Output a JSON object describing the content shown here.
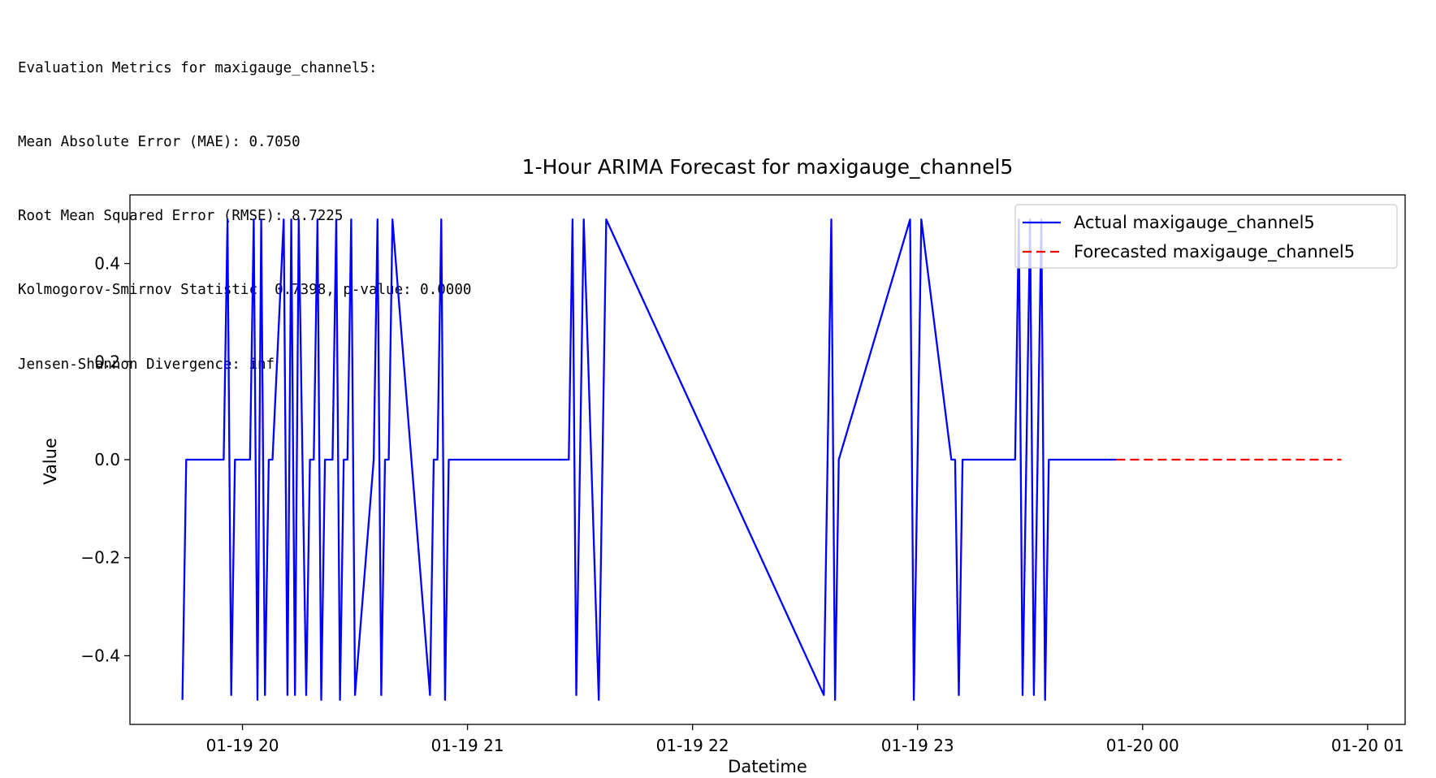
{
  "metrics": {
    "heading": "Evaluation Metrics for maxigauge_channel5:",
    "mae": "Mean Absolute Error (MAE): 0.7050",
    "rmse": "Root Mean Squared Error (RMSE): 8.7225",
    "ks": "Kolmogorov-Smirnov Statistic: 0.7398, p-value: 0.0000",
    "js": "Jensen-Shannon Divergence: inf"
  },
  "chart_data": {
    "type": "line",
    "title": "1-Hour ARIMA Forecast for maxigauge_channel5",
    "xlabel": "Datetime",
    "ylabel": "Value",
    "xlim": [
      "01-19 19:30",
      "01-20 01:10"
    ],
    "ylim": [
      -0.54,
      0.54
    ],
    "xticks": [
      {
        "label": "01-19 20",
        "time": "01-19 20:00"
      },
      {
        "label": "01-19 21",
        "time": "01-19 21:00"
      },
      {
        "label": "01-19 22",
        "time": "01-19 22:00"
      },
      {
        "label": "01-19 23",
        "time": "01-19 23:00"
      },
      {
        "label": "01-20 00",
        "time": "01-20 00:00"
      },
      {
        "label": "01-20 01",
        "time": "01-20 01:00"
      }
    ],
    "yticks": [
      {
        "label": "0.4",
        "value": 0.4
      },
      {
        "label": "0.2",
        "value": 0.2
      },
      {
        "label": "0.0",
        "value": 0.0
      },
      {
        "label": "−0.2",
        "value": -0.2
      },
      {
        "label": "−0.4",
        "value": -0.4
      }
    ],
    "legend_position": "top-right",
    "grid": false,
    "series": [
      {
        "name": "Actual maxigauge_channel5",
        "color": "#0000ff",
        "style": "solid",
        "x": [
          "01-19 19:44",
          "01-19 19:45",
          "01-19 19:55",
          "01-19 19:56",
          "01-19 19:57",
          "01-19 19:58",
          "01-19 20:02",
          "01-19 20:03",
          "01-19 20:04",
          "01-19 20:05",
          "01-19 20:06",
          "01-19 20:07",
          "01-19 20:08",
          "01-19 20:11",
          "01-19 20:12",
          "01-19 20:13",
          "01-19 20:14",
          "01-19 20:15",
          "01-19 20:16",
          "01-19 20:17",
          "01-19 20:18",
          "01-19 20:19",
          "01-19 20:20",
          "01-19 20:21",
          "01-19 20:22",
          "01-19 20:23",
          "01-19 20:24",
          "01-19 20:25",
          "01-19 20:26",
          "01-19 20:27",
          "01-19 20:28",
          "01-19 20:29",
          "01-19 20:30",
          "01-19 20:35",
          "01-19 20:36",
          "01-19 20:37",
          "01-19 20:38",
          "01-19 20:39",
          "01-19 20:40",
          "01-19 20:50",
          "01-19 20:51",
          "01-19 20:52",
          "01-19 20:53",
          "01-19 20:54",
          "01-19 20:55",
          "01-19 21:27",
          "01-19 21:28",
          "01-19 21:29",
          "01-19 21:30",
          "01-19 21:31",
          "01-19 21:35",
          "01-19 21:36",
          "01-19 21:37",
          "01-19 22:35",
          "01-19 22:36",
          "01-19 22:37",
          "01-19 22:38",
          "01-19 22:39",
          "01-19 22:58",
          "01-19 22:59",
          "01-19 23:00",
          "01-19 23:01",
          "01-19 23:09",
          "01-19 23:10",
          "01-19 23:11",
          "01-19 23:12",
          "01-19 23:25",
          "01-19 23:26",
          "01-19 23:27",
          "01-19 23:28",
          "01-19 23:29",
          "01-19 23:30",
          "01-19 23:31",
          "01-19 23:32",
          "01-19 23:33",
          "01-19 23:34",
          "01-19 23:35",
          "01-19 23:42",
          "01-19 23:43",
          "01-19 23:44",
          "01-19 23:45",
          "01-19 23:53"
        ],
        "y": [
          -0.49,
          0,
          0,
          0.49,
          -0.48,
          0,
          0,
          0.49,
          -0.49,
          0.49,
          -0.48,
          0,
          0,
          0.49,
          -0.48,
          0.49,
          -0.48,
          0.49,
          0,
          -0.48,
          0,
          0,
          0.49,
          -0.49,
          0,
          0,
          0,
          0.49,
          -0.49,
          0,
          0,
          0.49,
          -0.48,
          0,
          0.49,
          -0.48,
          0,
          0,
          0.49,
          -0.48,
          0,
          0,
          0.49,
          -0.49,
          0,
          0,
          0.49,
          -0.48,
          0,
          0.49,
          -0.49,
          0,
          0.49,
          -0.48,
          0,
          0.49,
          -0.49,
          0,
          0.49,
          -0.49,
          0,
          0.49,
          0,
          0,
          -0.48,
          0,
          0,
          0,
          0.49,
          -0.48,
          0,
          0.49,
          -0.48,
          0,
          0.49,
          -0.49,
          0,
          0,
          0,
          0,
          0,
          0
        ]
      },
      {
        "name": "Forecasted maxigauge_channel5",
        "color": "#ff0000",
        "style": "dashed",
        "x": [
          "01-19 23:53",
          "01-20 00:53"
        ],
        "y": [
          0,
          0
        ]
      }
    ]
  }
}
